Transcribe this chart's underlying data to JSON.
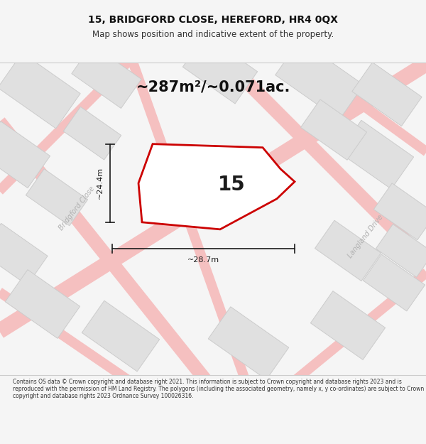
{
  "title_line1": "15, BRIDGFORD CLOSE, HEREFORD, HR4 0QX",
  "title_line2": "Map shows position and indicative extent of the property.",
  "footer_text": "Contains OS data © Crown copyright and database right 2021. This information is subject to Crown copyright and database rights 2023 and is reproduced with the permission of HM Land Registry. The polygons (including the associated geometry, namely x, y co-ordinates) are subject to Crown copyright and database rights 2023 Ordnance Survey 100026316.",
  "area_label": "~287m²/~0.071ac.",
  "plot_number": "15",
  "dim_horizontal": "~28.7m",
  "dim_vertical": "~24.4m",
  "road_label_left": "Bridgford Close",
  "road_label_right": "Langland Drive",
  "bg_color": "#f5f5f5",
  "map_bg": "#f2f2f2",
  "plot_fill": "#ffffff",
  "plot_edge_color": "#cc0000",
  "building_color": "#e0e0e0",
  "building_edge": "#cccccc",
  "road_color": "#f5c0c0",
  "dim_line_color": "#1a1a1a",
  "road_text_color": "#b0b0b0",
  "title_fontsize": 10,
  "subtitle_fontsize": 8.5,
  "area_fontsize": 15,
  "plot_num_fontsize": 20,
  "dim_fontsize": 8,
  "road_label_fontsize": 7
}
